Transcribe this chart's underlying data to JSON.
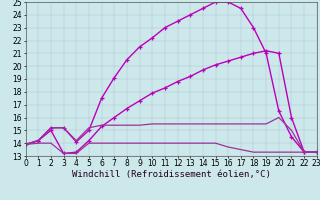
{
  "xlabel": "Windchill (Refroidissement éolien,°C)",
  "bg_color": "#cce8ea",
  "xmin": 0,
  "xmax": 23,
  "ymin": 13,
  "ymax": 25,
  "series": [
    {
      "x": [
        0,
        1,
        2,
        3,
        4,
        5,
        6,
        7,
        8,
        9,
        10,
        11,
        12,
        13,
        14,
        15,
        16,
        17,
        18,
        19,
        20,
        21,
        22,
        23
      ],
      "y": [
        13.9,
        14.2,
        15.2,
        15.2,
        14.1,
        15.0,
        17.5,
        19.1,
        20.5,
        21.5,
        22.2,
        23.0,
        23.5,
        24.0,
        24.5,
        25.0,
        25.0,
        24.5,
        23.0,
        21.0,
        16.5,
        14.5,
        13.3,
        13.3
      ],
      "marker": "+",
      "color": "#bb00bb",
      "lw": 1.0
    },
    {
      "x": [
        0,
        1,
        2,
        3,
        4,
        5,
        6,
        7,
        8,
        9,
        10,
        11,
        12,
        13,
        14,
        15,
        16,
        17,
        18,
        19,
        20,
        21,
        22,
        23
      ],
      "y": [
        13.9,
        14.2,
        15.0,
        13.2,
        13.3,
        14.2,
        15.3,
        16.0,
        16.7,
        17.3,
        17.9,
        18.3,
        18.8,
        19.2,
        19.7,
        20.1,
        20.4,
        20.7,
        21.0,
        21.2,
        21.0,
        16.0,
        13.3,
        13.3
      ],
      "marker": "+",
      "color": "#bb00bb",
      "lw": 1.0
    },
    {
      "x": [
        0,
        1,
        2,
        3,
        4,
        5,
        6,
        7,
        8,
        9,
        10,
        11,
        12,
        13,
        14,
        15,
        16,
        17,
        18,
        19,
        20,
        21,
        22,
        23
      ],
      "y": [
        13.9,
        14.2,
        15.2,
        15.2,
        14.2,
        15.2,
        15.4,
        15.4,
        15.4,
        15.4,
        15.5,
        15.5,
        15.5,
        15.5,
        15.5,
        15.5,
        15.5,
        15.5,
        15.5,
        15.5,
        16.0,
        15.0,
        13.3,
        13.3
      ],
      "marker": null,
      "color": "#993399",
      "lw": 0.9
    },
    {
      "x": [
        0,
        1,
        2,
        3,
        4,
        5,
        6,
        7,
        8,
        9,
        10,
        11,
        12,
        13,
        14,
        15,
        16,
        17,
        18,
        19,
        20,
        21,
        22,
        23
      ],
      "y": [
        13.9,
        14.0,
        14.0,
        13.2,
        13.2,
        14.0,
        14.0,
        14.0,
        14.0,
        14.0,
        14.0,
        14.0,
        14.0,
        14.0,
        14.0,
        14.0,
        13.7,
        13.5,
        13.3,
        13.3,
        13.3,
        13.3,
        13.3,
        13.3
      ],
      "marker": null,
      "color": "#993399",
      "lw": 0.9
    }
  ],
  "tick_fontsize": 5.5,
  "label_fontsize": 6.5
}
